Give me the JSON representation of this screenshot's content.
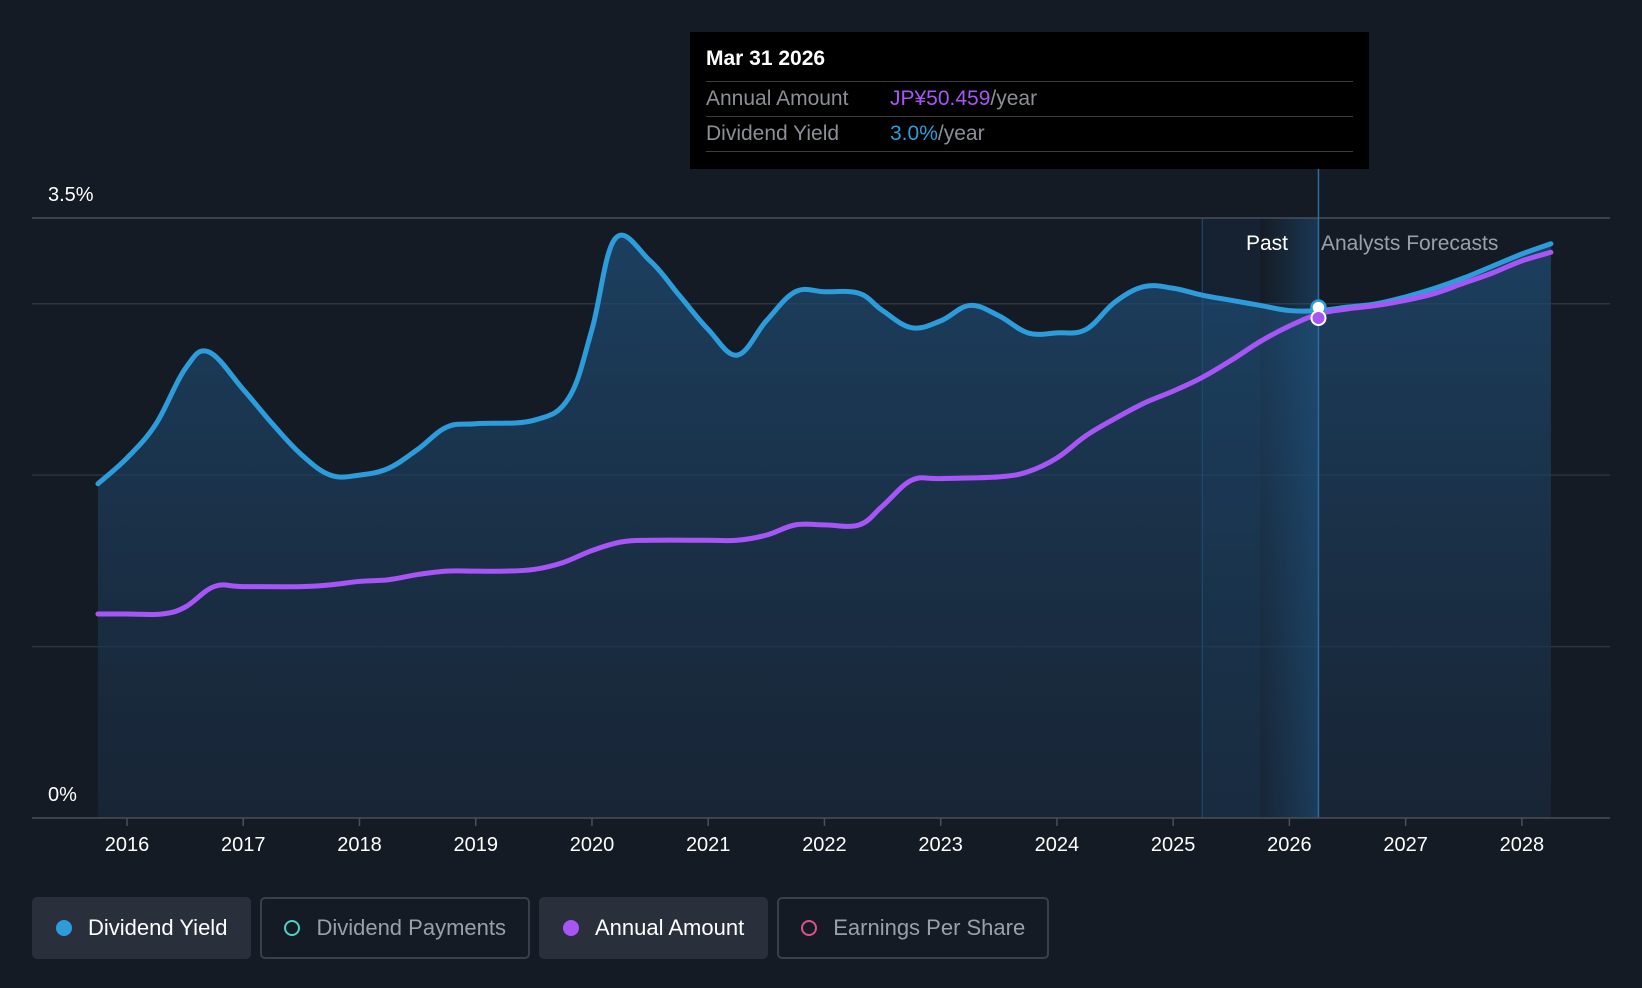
{
  "chart_data": {
    "type": "line",
    "y_tick_labels": [
      "3.5%",
      "0%"
    ],
    "ylim": [
      0,
      3.5
    ],
    "x_tick_labels": [
      "2016",
      "2017",
      "2018",
      "2019",
      "2020",
      "2021",
      "2022",
      "2023",
      "2024",
      "2025",
      "2026",
      "2027",
      "2028"
    ],
    "xlim": [
      2015.0,
      2028.25
    ],
    "past_label": "Past",
    "forecast_label": "Analysts Forecasts",
    "past_region": [
      2025.25,
      2025.75
    ],
    "highlight_x": 2026.25,
    "series": [
      {
        "name": "Dividend Yield",
        "color": "#2d9cdb",
        "points": [
          [
            2015.75,
            1.95
          ],
          [
            2016.0,
            2.1
          ],
          [
            2016.25,
            2.3
          ],
          [
            2016.5,
            2.62
          ],
          [
            2016.7,
            2.72
          ],
          [
            2017.0,
            2.5
          ],
          [
            2017.25,
            2.3
          ],
          [
            2017.5,
            2.12
          ],
          [
            2017.75,
            2.0
          ],
          [
            2018.0,
            2.0
          ],
          [
            2018.25,
            2.04
          ],
          [
            2018.5,
            2.15
          ],
          [
            2018.75,
            2.28
          ],
          [
            2019.0,
            2.3
          ],
          [
            2019.5,
            2.32
          ],
          [
            2019.8,
            2.45
          ],
          [
            2020.0,
            2.85
          ],
          [
            2020.2,
            3.38
          ],
          [
            2020.5,
            3.25
          ],
          [
            2020.75,
            3.05
          ],
          [
            2021.0,
            2.85
          ],
          [
            2021.25,
            2.7
          ],
          [
            2021.5,
            2.9
          ],
          [
            2021.75,
            3.07
          ],
          [
            2022.0,
            3.07
          ],
          [
            2022.3,
            3.06
          ],
          [
            2022.5,
            2.96
          ],
          [
            2022.75,
            2.86
          ],
          [
            2023.0,
            2.9
          ],
          [
            2023.25,
            2.99
          ],
          [
            2023.5,
            2.93
          ],
          [
            2023.75,
            2.83
          ],
          [
            2024.0,
            2.83
          ],
          [
            2024.25,
            2.85
          ],
          [
            2024.5,
            3.01
          ],
          [
            2024.75,
            3.1
          ],
          [
            2025.0,
            3.09
          ],
          [
            2025.25,
            3.05
          ],
          [
            2025.5,
            3.02
          ],
          [
            2025.75,
            2.99
          ],
          [
            2026.0,
            2.96
          ],
          [
            2026.25,
            2.96
          ],
          [
            2026.5,
            2.98
          ],
          [
            2026.75,
            3.0
          ],
          [
            2027.0,
            3.04
          ],
          [
            2027.25,
            3.09
          ],
          [
            2027.5,
            3.15
          ],
          [
            2027.75,
            3.22
          ],
          [
            2028.0,
            3.29
          ],
          [
            2028.25,
            3.35
          ]
        ]
      },
      {
        "name": "Annual Amount",
        "color": "#a855f7",
        "points": [
          [
            2015.75,
            1.19
          ],
          [
            2016.0,
            1.19
          ],
          [
            2016.3,
            1.19
          ],
          [
            2016.5,
            1.23
          ],
          [
            2016.75,
            1.35
          ],
          [
            2017.0,
            1.35
          ],
          [
            2017.5,
            1.35
          ],
          [
            2017.75,
            1.36
          ],
          [
            2018.0,
            1.38
          ],
          [
            2018.25,
            1.39
          ],
          [
            2018.5,
            1.42
          ],
          [
            2018.75,
            1.44
          ],
          [
            2019.0,
            1.44
          ],
          [
            2019.25,
            1.44
          ],
          [
            2019.5,
            1.45
          ],
          [
            2019.75,
            1.49
          ],
          [
            2020.0,
            1.56
          ],
          [
            2020.25,
            1.61
          ],
          [
            2020.5,
            1.62
          ],
          [
            2021.0,
            1.62
          ],
          [
            2021.25,
            1.62
          ],
          [
            2021.5,
            1.65
          ],
          [
            2021.75,
            1.71
          ],
          [
            2022.0,
            1.71
          ],
          [
            2022.3,
            1.71
          ],
          [
            2022.5,
            1.82
          ],
          [
            2022.75,
            1.97
          ],
          [
            2023.0,
            1.98
          ],
          [
            2023.5,
            1.99
          ],
          [
            2023.75,
            2.02
          ],
          [
            2024.0,
            2.1
          ],
          [
            2024.25,
            2.23
          ],
          [
            2024.5,
            2.33
          ],
          [
            2024.75,
            2.42
          ],
          [
            2025.0,
            2.49
          ],
          [
            2025.25,
            2.57
          ],
          [
            2025.5,
            2.67
          ],
          [
            2025.75,
            2.78
          ],
          [
            2026.0,
            2.87
          ],
          [
            2026.25,
            2.94
          ],
          [
            2026.5,
            2.97
          ],
          [
            2026.75,
            2.99
          ],
          [
            2027.0,
            3.02
          ],
          [
            2027.25,
            3.06
          ],
          [
            2027.5,
            3.12
          ],
          [
            2027.75,
            3.18
          ],
          [
            2028.0,
            3.25
          ],
          [
            2028.25,
            3.3
          ]
        ]
      }
    ]
  },
  "tooltip": {
    "date": "Mar 31 2026",
    "annual_amount_label": "Annual Amount",
    "annual_amount_value": "JP¥50.459",
    "annual_amount_unit": "/year",
    "dividend_yield_label": "Dividend Yield",
    "dividend_yield_value": "3.0%",
    "dividend_yield_unit": "/year"
  },
  "legend": [
    {
      "label": "Dividend Yield",
      "color": "#2d9cdb",
      "active": true,
      "filled": true
    },
    {
      "label": "Dividend Payments",
      "color": "#4fd1c5",
      "active": false,
      "filled": false
    },
    {
      "label": "Annual Amount",
      "color": "#a855f7",
      "active": true,
      "filled": true
    },
    {
      "label": "Earnings Per Share",
      "color": "#e0508a",
      "active": false,
      "filled": false
    }
  ]
}
